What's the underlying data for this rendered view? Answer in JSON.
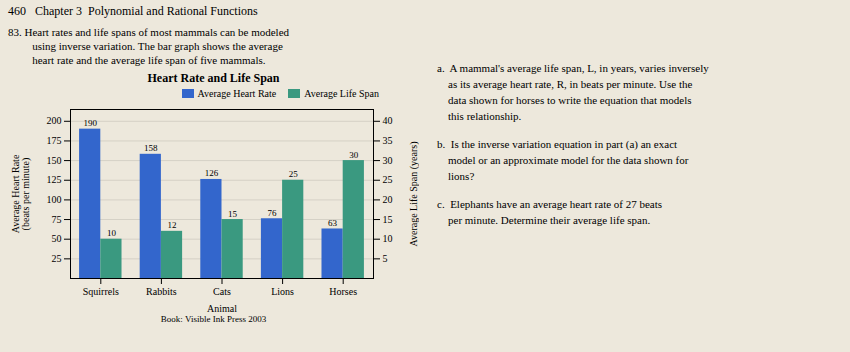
{
  "chart_data": {
    "type": "bar",
    "title": "Heart Rate and Life Span",
    "xlabel": "Animal",
    "ylabel": "Average Heart Rate\n(beats per minute)",
    "y2label": "Average Life Span (years)",
    "categories": [
      "Squirrels",
      "Rabbits",
      "Cats",
      "Lions",
      "Horses"
    ],
    "series": [
      {
        "name": "Average Heart Rate",
        "color": "#3366CC",
        "values": [
          190,
          158,
          126,
          76,
          63
        ]
      },
      {
        "name": "Average Life Span",
        "color": "#3A9980",
        "values": [
          10,
          12,
          15,
          25,
          30
        ],
        "axis": "y2"
      }
    ],
    "ylim": [
      0,
      215
    ],
    "yticks": [
      25,
      50,
      75,
      100,
      125,
      150,
      175,
      200
    ],
    "y2lim": [
      0,
      43
    ],
    "y2ticks": [
      5,
      10,
      15,
      20,
      25,
      30,
      35,
      40
    ],
    "grid": true,
    "legend": "top-right",
    "data_labels": true,
    "annotations": [
      "460   Chapter 3  Polynomial and Rational Functions",
      "83. Heart rates and life spans of most mammals can be modeled\nusing inverse variation. The bar graph shows the average\nheart rate and the average life span of five mammals.",
      "a.  A mammal's average life span, L, in years, varies inversely\n    as its average heart rate, R, in beats per minute. Use the\n    data shown for horses to write the equation that models\n    this relationship.",
      "b.  Is the inverse variation equation in part (a) an exact\n    model or an approximate model for the data shown for\n    lions?",
      "c.  Elephants have an average heart rate of 27 beats\n    per minute. Determine their average life span.",
      "Book: Visible Ink Press 2003"
    ]
  }
}
